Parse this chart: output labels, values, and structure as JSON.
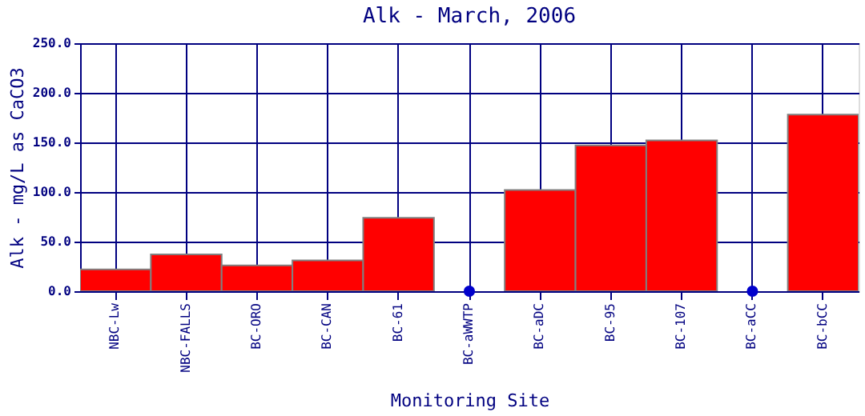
{
  "chart_data": {
    "type": "bar",
    "title": "Alk - March, 2006",
    "xlabel": "Monitoring Site",
    "ylabel": "Alk - mg/L as CaCO3",
    "categories": [
      "NBC-Lw",
      "NBC-FALLS",
      "BC-ORO",
      "BC-CAN",
      "BC-61",
      "BC-aWWTP",
      "BC-aDC",
      "BC-95",
      "BC-107",
      "BC-aCC",
      "BC-bCC"
    ],
    "series": [
      {
        "color": "#ff0000",
        "values": [
          22,
          37,
          26,
          31,
          74,
          null,
          102,
          147,
          152,
          null,
          178
        ]
      },
      {
        "type": "scatter",
        "color": "#0000cc",
        "x": [
          "BC-aWWTP",
          "BC-aCC"
        ],
        "values": [
          0,
          0
        ]
      }
    ],
    "ylim": [
      0,
      250
    ],
    "yticks": [
      {
        "value": 0,
        "label": "0.0"
      },
      {
        "value": 50,
        "label": "50.0"
      },
      {
        "value": 100,
        "label": "100.0"
      },
      {
        "value": 150,
        "label": "150.0"
      },
      {
        "value": 200,
        "label": "200.0"
      },
      {
        "value": 250,
        "label": "250.0"
      }
    ],
    "grid": true,
    "marker": "circle"
  }
}
